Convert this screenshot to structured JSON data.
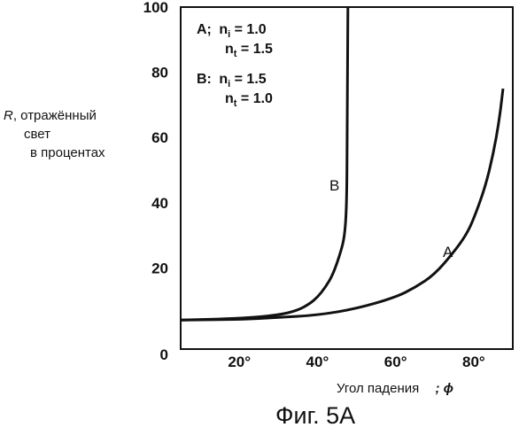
{
  "chart_data": {
    "type": "line",
    "title": "",
    "figure_caption": "Фиг. 5A",
    "ylabel": {
      "line1_var": "R",
      "line1_rest": ", отражённый",
      "line2": "свет",
      "line3": "в процентах"
    },
    "xlabel": "Угол падения",
    "xlabel_symbol": "; ϕ",
    "xlim": [
      5,
      90
    ],
    "ylim": [
      0,
      100
    ],
    "x_ticks": [
      {
        "value": 20,
        "label": "20°"
      },
      {
        "value": 40,
        "label": "40°"
      },
      {
        "value": 60,
        "label": "60°"
      },
      {
        "value": 80,
        "label": "80°"
      }
    ],
    "y_ticks": [
      {
        "value": 0,
        "label": "0"
      },
      {
        "value": 20,
        "label": "20"
      },
      {
        "value": 40,
        "label": "40"
      },
      {
        "value": 60,
        "label": "60"
      },
      {
        "value": 80,
        "label": "80"
      },
      {
        "value": 100,
        "label": "100"
      }
    ],
    "legend": {
      "A_prefix": "A;",
      "A_ni": "1.0",
      "A_nt": "1.5",
      "B_prefix": "B:",
      "B_ni": "1.5",
      "B_nt": "1.0",
      "n": "n",
      "sub_i": "i",
      "sub_t": "t",
      "eq": " = "
    },
    "series": [
      {
        "name": "A",
        "points": [
          [
            5,
            4
          ],
          [
            20,
            4.2
          ],
          [
            30,
            4.8
          ],
          [
            40,
            5.5
          ],
          [
            50,
            7.5
          ],
          [
            60,
            11
          ],
          [
            65,
            14
          ],
          [
            70,
            18
          ],
          [
            75,
            25
          ],
          [
            78,
            30
          ],
          [
            80,
            35
          ],
          [
            83,
            45
          ],
          [
            85,
            55
          ],
          [
            86.5,
            65
          ],
          [
            87.5,
            75
          ]
        ]
      },
      {
        "name": "B",
        "points": [
          [
            5,
            4
          ],
          [
            20,
            4.5
          ],
          [
            30,
            5.5
          ],
          [
            35,
            7
          ],
          [
            38,
            9
          ],
          [
            40,
            11
          ],
          [
            42,
            14
          ],
          [
            44,
            18
          ],
          [
            46,
            25
          ],
          [
            47,
            30
          ],
          [
            47.5,
            40
          ],
          [
            47.6,
            60
          ],
          [
            47.7,
            80
          ],
          [
            47.8,
            100
          ]
        ]
      }
    ]
  }
}
